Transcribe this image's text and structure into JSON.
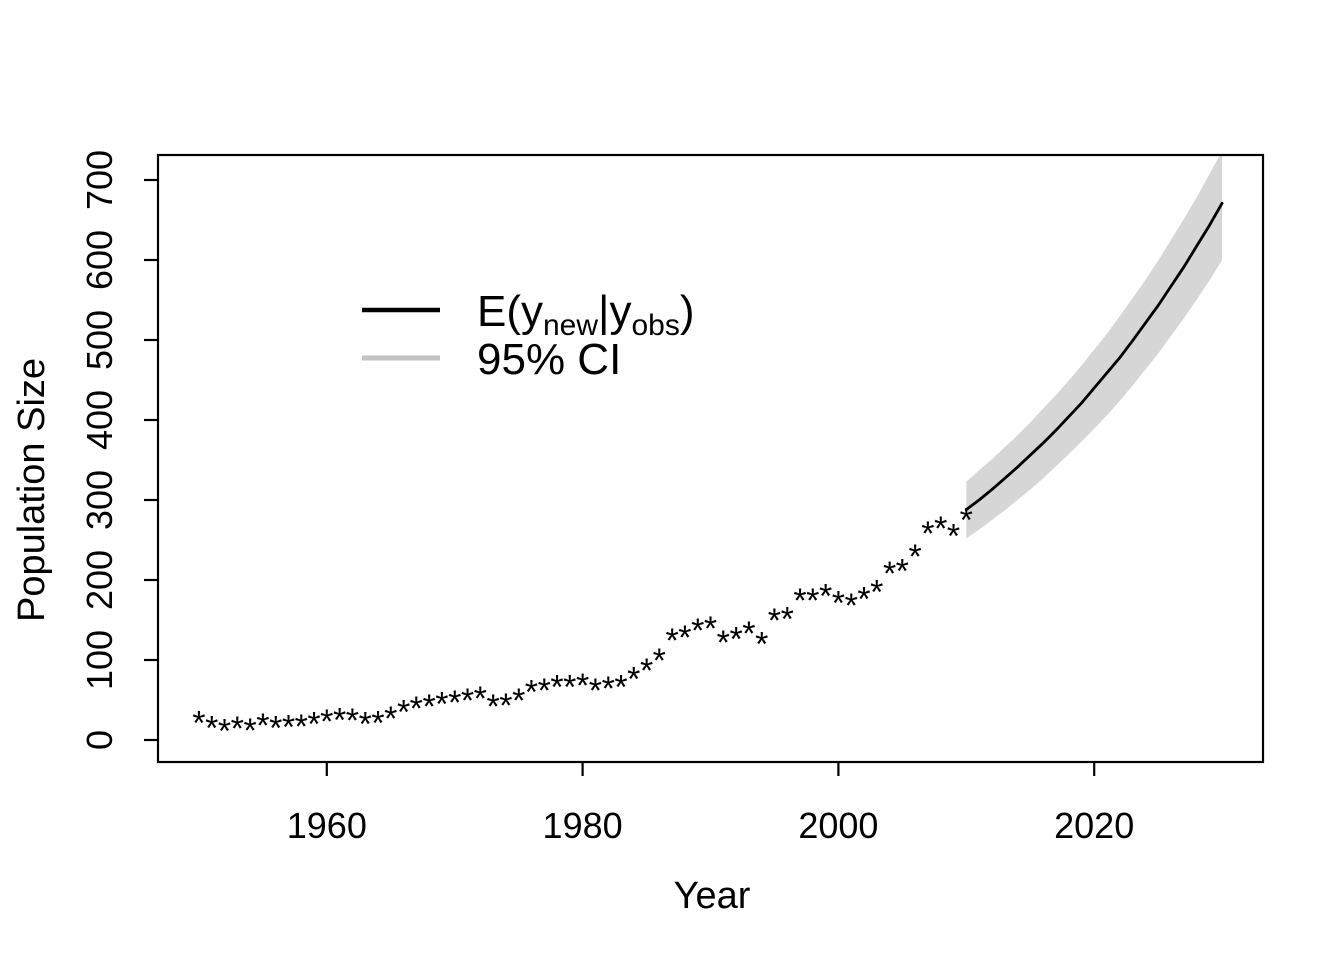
{
  "figure": {
    "title": "",
    "background": "#ffffff",
    "foreground": "#000000"
  },
  "legend": {
    "position": "upper-left-inside",
    "items": [
      {
        "label": "E(y_new|y_obs)",
        "parts": [
          {
            "t": "E(y"
          },
          {
            "t": "new",
            "sub": true
          },
          {
            "t": "|y"
          },
          {
            "t": "obs",
            "sub": true
          },
          {
            "t": ")"
          }
        ],
        "color": "#000000",
        "line_width": 4.5
      },
      {
        "label": "95% CI",
        "parts": [
          {
            "t": "95% CI"
          }
        ],
        "color": "#c3c3c3",
        "line_width": 5
      }
    ]
  },
  "chart_data": {
    "type": "scatter",
    "title": "",
    "xlabel": "Year",
    "ylabel": "Population Size",
    "xlim": [
      1946.8,
      2033.2
    ],
    "ylim": [
      -27.5,
      731.25
    ],
    "x_ticks": [
      1960,
      1980,
      2000,
      2020
    ],
    "y_ticks": [
      0,
      100,
      200,
      300,
      400,
      500,
      600,
      700
    ],
    "grid": false,
    "legend_position": "upper-left-inside",
    "series": [
      {
        "name": "observed",
        "type": "scatter",
        "marker": "*",
        "color": "#000000",
        "x": [
          1950,
          1951,
          1952,
          1953,
          1954,
          1955,
          1956,
          1957,
          1958,
          1959,
          1960,
          1961,
          1962,
          1963,
          1964,
          1965,
          1966,
          1967,
          1968,
          1969,
          1970,
          1971,
          1972,
          1973,
          1974,
          1975,
          1976,
          1977,
          1978,
          1979,
          1980,
          1981,
          1982,
          1983,
          1984,
          1985,
          1986,
          1987,
          1988,
          1989,
          1990,
          1991,
          1992,
          1993,
          1994,
          1995,
          1996,
          1997,
          1998,
          1999,
          2000,
          2001,
          2002,
          2003,
          2004,
          2005,
          2006,
          2007,
          2008,
          2009,
          2010
        ],
        "y": [
          28,
          22,
          18,
          21,
          19,
          25,
          22,
          23,
          24,
          27,
          30,
          32,
          31,
          27,
          28,
          34,
          42,
          46,
          49,
          52,
          54,
          56,
          59,
          49,
          50,
          56,
          67,
          69,
          73,
          73,
          75,
          69,
          71,
          73,
          83,
          94,
          106,
          131,
          135,
          144,
          146,
          129,
          133,
          140,
          127,
          156,
          158,
          181,
          181,
          187,
          178,
          175,
          183,
          192,
          215,
          218,
          236,
          265,
          271,
          262,
          282
        ]
      },
      {
        "name": "E(y_new|y_obs)",
        "type": "line",
        "color": "#000000",
        "x": [
          2010,
          2011,
          2012,
          2013,
          2014,
          2015,
          2016,
          2017,
          2018,
          2019,
          2020,
          2021,
          2022,
          2023,
          2024,
          2025,
          2026,
          2027,
          2028,
          2029,
          2030
        ],
        "y": [
          288,
          300,
          313,
          327,
          341,
          356,
          371,
          387,
          404,
          421,
          440,
          459,
          478,
          499,
          521,
          543,
          567,
          591,
          617,
          643,
          671
        ]
      },
      {
        "name": "95% CI",
        "type": "band",
        "color": "#d6d6d6",
        "x": [
          2010,
          2011,
          2012,
          2013,
          2014,
          2015,
          2016,
          2017,
          2018,
          2019,
          2020,
          2021,
          2022,
          2023,
          2024,
          2025,
          2026,
          2027,
          2028,
          2029,
          2030
        ],
        "y_lower": [
          252,
          263,
          275,
          287,
          300,
          313,
          327,
          342,
          357,
          373,
          389,
          406,
          424,
          443,
          463,
          483,
          505,
          527,
          550,
          574,
          600
        ],
        "y_upper": [
          323,
          337,
          351,
          366,
          381,
          397,
          414,
          431,
          449,
          468,
          488,
          508,
          530,
          552,
          575,
          599,
          625,
          651,
          678,
          707,
          736
        ]
      }
    ]
  }
}
